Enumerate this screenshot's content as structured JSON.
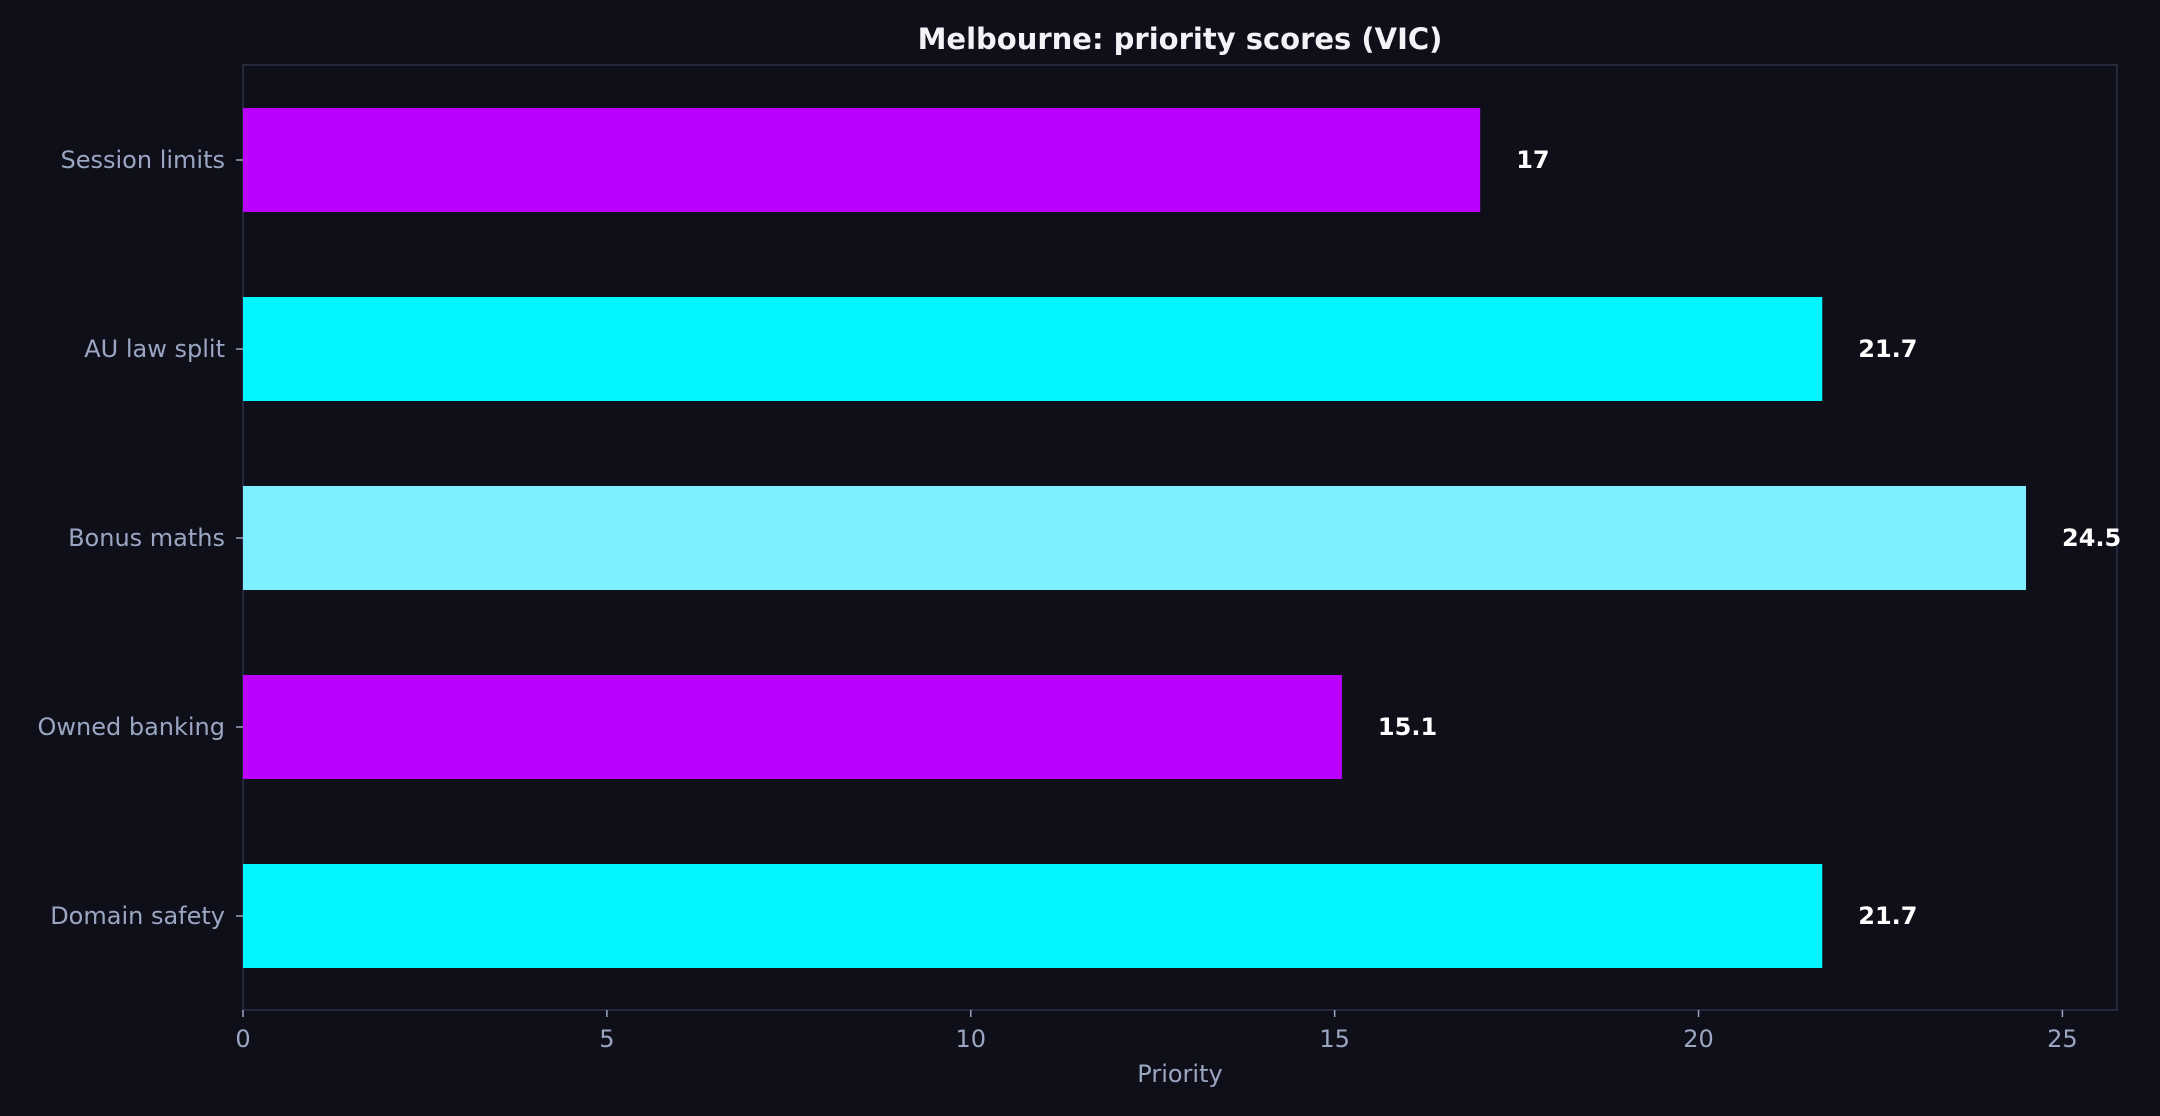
{
  "chart_data": {
    "type": "bar",
    "orientation": "horizontal",
    "title": "Melbourne: priority scores (VIC)",
    "xlabel": "Priority",
    "ylabel": "",
    "categories": [
      "Session limits",
      "AU law split",
      "Bonus maths",
      "Owned banking",
      "Domain safety"
    ],
    "values": [
      17,
      21.7,
      24.5,
      15.1,
      21.7
    ],
    "value_labels": [
      "17",
      "21.7",
      "24.5",
      "15.1",
      "21.7"
    ],
    "bar_colors": [
      "#bb00ff",
      "#00f5ff",
      "#7df0ff",
      "#bb00ff",
      "#00f5ff"
    ],
    "xlim": [
      0,
      25.75
    ],
    "xticks": [
      0,
      5,
      10,
      15,
      20,
      25
    ],
    "grid": false,
    "legend": "none"
  },
  "colors": {
    "background": "#0f0f1a",
    "text": "#9aa6c2",
    "title": "#f2f2f7"
  }
}
